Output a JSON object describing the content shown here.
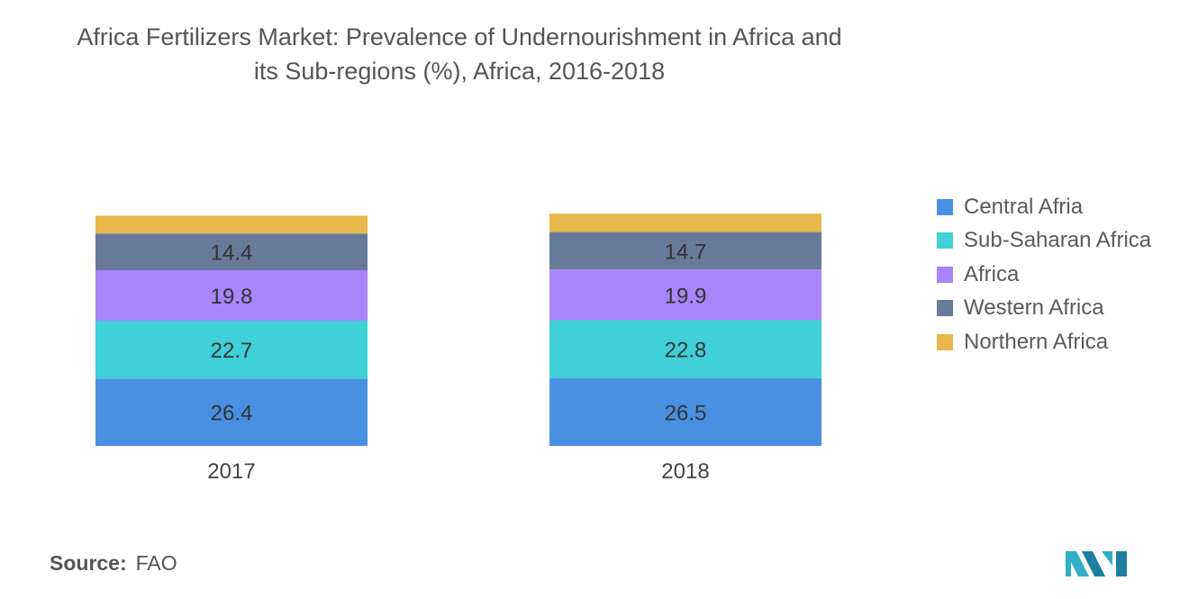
{
  "title": {
    "line1": "Africa Fertilizers Market: Prevalence of Undernourishment in Africa and",
    "line2": "its Sub-regions (%), Africa, 2016-2018"
  },
  "source": {
    "label": "Source:",
    "value": "FAO"
  },
  "colors": {
    "Central Afria": "#4a90e2",
    "Sub-Saharan Africa": "#3fd0d8",
    "Africa": "#aa84fa",
    "Western Africa": "#687a99",
    "Northern Africa": "#e8b84a"
  },
  "chart_data": {
    "type": "bar",
    "stacked": true,
    "categories": [
      "2017",
      "2018"
    ],
    "series": [
      {
        "name": "Central Afria",
        "values": [
          26.4,
          26.5
        ]
      },
      {
        "name": "Sub-Saharan Africa",
        "values": [
          22.7,
          22.8
        ]
      },
      {
        "name": "Africa",
        "values": [
          19.8,
          19.9
        ]
      },
      {
        "name": "Western Africa",
        "values": [
          14.4,
          14.7
        ]
      },
      {
        "name": "Northern Africa",
        "values": [
          7.0,
          7.2
        ]
      }
    ],
    "labeled_series": [
      "Central Afria",
      "Sub-Saharan Africa",
      "Africa",
      "Western Africa"
    ],
    "title": "Africa Fertilizers Market: Prevalence of Undernourishment in Africa and its Sub-regions (%), Africa, 2016-2018",
    "xlabel": "",
    "ylabel": "",
    "grid": false,
    "legend": "right"
  }
}
